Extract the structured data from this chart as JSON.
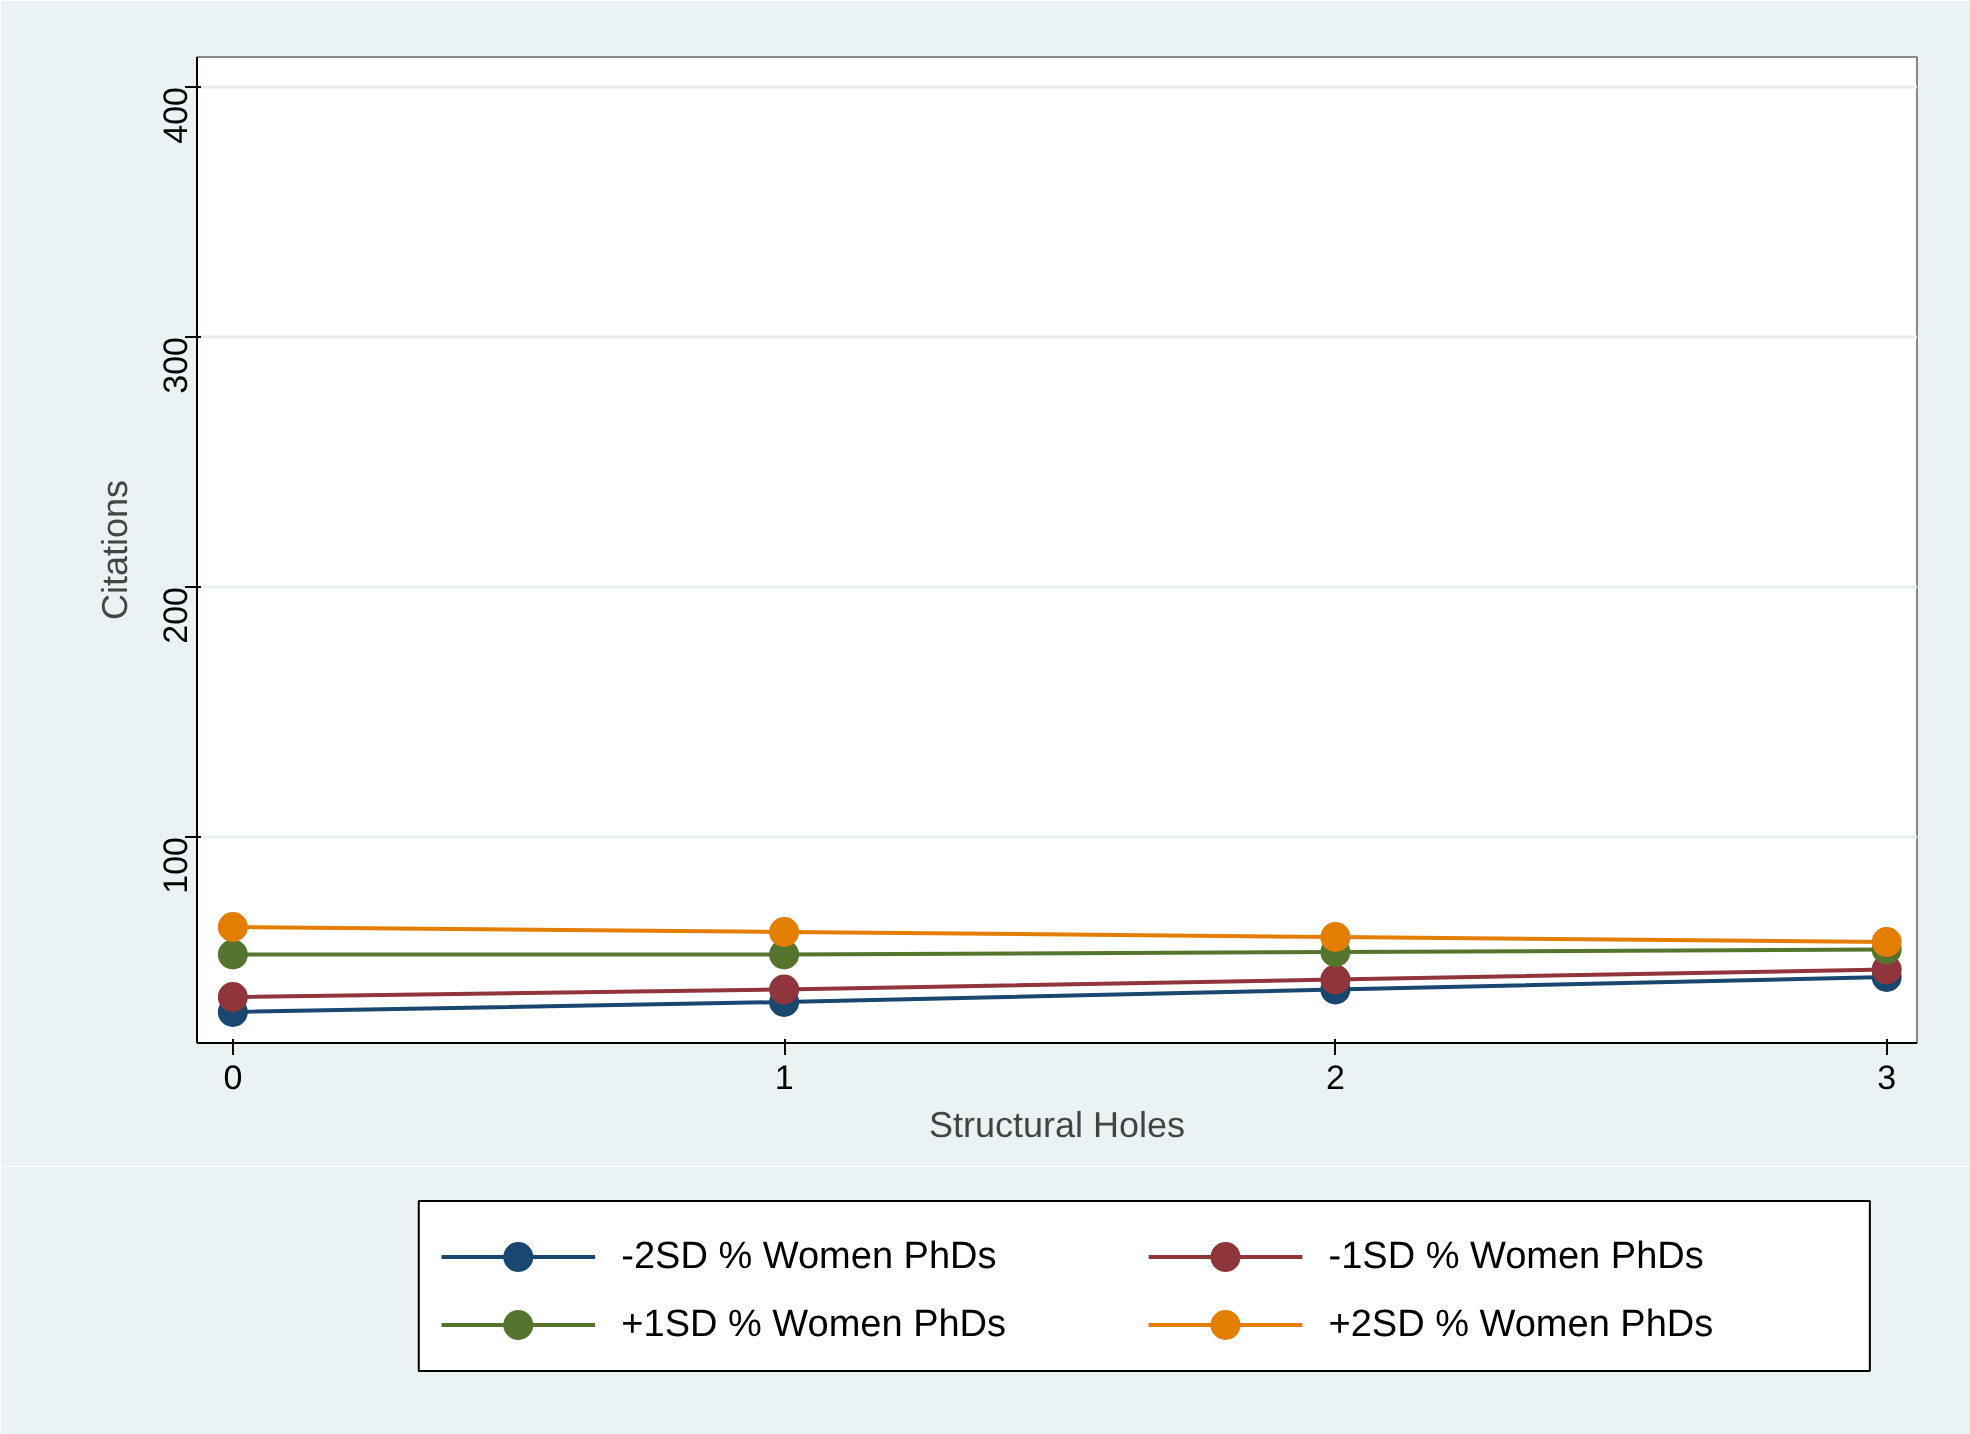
{
  "chart_data": {
    "type": "line",
    "xlabel": "Structural Holes",
    "ylabel": "Citations",
    "x": [
      0,
      1,
      2,
      3
    ],
    "series": [
      {
        "name": "-2SD % Women PhDs",
        "color": "#1a476f",
        "values": [
          30,
          34,
          39,
          44
        ]
      },
      {
        "name": "-1SD % Women PhDs",
        "color": "#90353b",
        "values": [
          36,
          39,
          43,
          47
        ]
      },
      {
        "name": "+1SD % Women PhDs",
        "color": "#55752f",
        "values": [
          53,
          53,
          54,
          55
        ]
      },
      {
        "name": "+2SD % Women PhDs",
        "color": "#e37e00",
        "values": [
          64,
          62,
          60,
          58
        ]
      }
    ],
    "xlim": [
      -0.065,
      3.055
    ],
    "ylim": [
      17.6,
      412
    ],
    "xticks": [
      0,
      1,
      2,
      3
    ],
    "yticks": [
      100,
      200,
      300,
      400
    ],
    "grid": "y",
    "legend": "bottom",
    "marker": "circle",
    "line_style": "solid"
  }
}
